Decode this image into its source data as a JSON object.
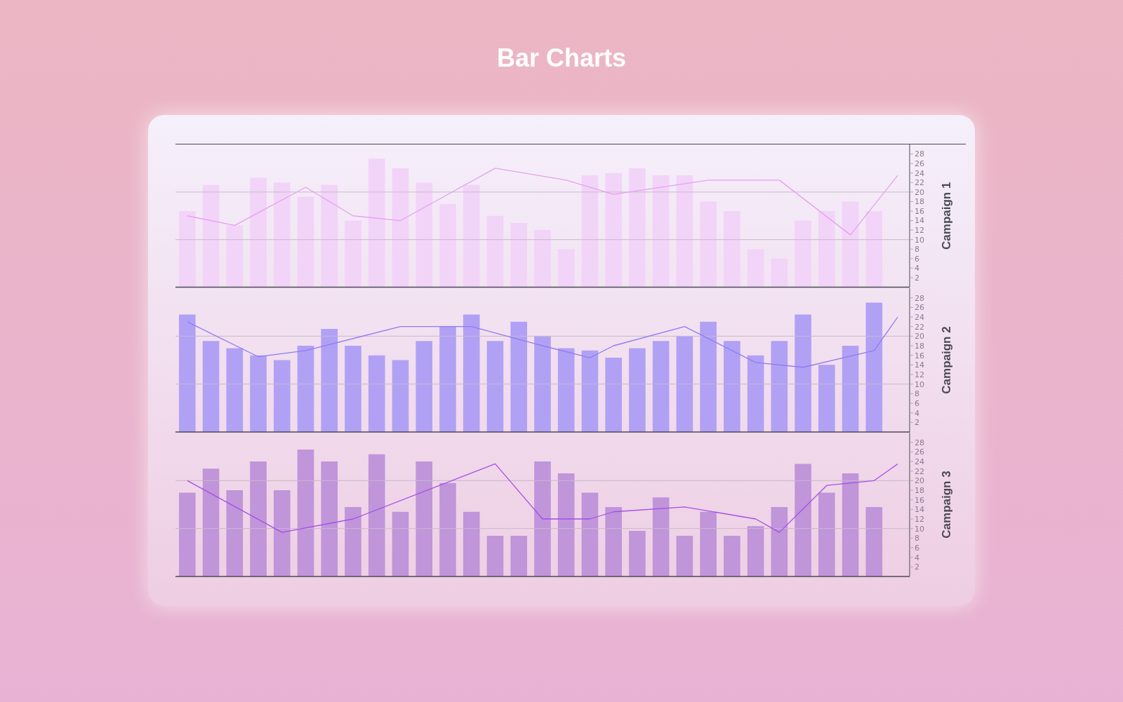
{
  "chart_data": [
    {
      "type": "bar",
      "title": "Bar Charts",
      "ylabel": "Campaign 1",
      "categories": [
        null,
        null,
        null,
        null,
        null,
        null,
        null,
        null,
        null,
        null,
        null,
        null,
        null,
        null,
        null,
        null,
        null,
        null,
        null,
        null,
        null,
        null,
        null,
        null,
        null,
        null,
        null,
        null,
        null,
        null,
        null
      ],
      "ylim": [
        0,
        30
      ],
      "yticks": [
        2,
        4,
        6,
        8,
        10,
        12,
        14,
        16,
        18,
        20,
        22,
        24,
        26,
        28
      ],
      "tick_labels": "y",
      "marker": "none",
      "ref_lines": [
        {
          "axis": "y",
          "value": 10,
          "color": "#c8b8cc"
        },
        {
          "axis": "y",
          "value": 20,
          "color": "#c8b8cc"
        }
      ],
      "series": [
        {
          "color": "#f2d4f8",
          "values": [
            16,
            21.5,
            13,
            23,
            22,
            19,
            21.5,
            14,
            27,
            25,
            22,
            17.5,
            21.5,
            15,
            13.5,
            12,
            8,
            23.5,
            24,
            25,
            23.5,
            23.5,
            18,
            16,
            8,
            6,
            14,
            16,
            18,
            16,
            null
          ]
        },
        {
          "type": "line",
          "color": "#e6a0f0",
          "values": [
            15,
            null,
            13,
            null,
            null,
            21,
            null,
            15,
            null,
            14,
            null,
            null,
            null,
            25,
            null,
            null,
            22.5,
            null,
            19.5,
            null,
            null,
            null,
            22.5,
            null,
            null,
            22.5,
            null,
            null,
            11,
            null,
            23.5
          ]
        }
      ]
    },
    {
      "type": "bar",
      "ylabel": "Campaign 2",
      "categories": [
        null,
        null,
        null,
        null,
        null,
        null,
        null,
        null,
        null,
        null,
        null,
        null,
        null,
        null,
        null,
        null,
        null,
        null,
        null,
        null,
        null,
        null,
        null,
        null,
        null,
        null,
        null,
        null,
        null,
        null,
        null
      ],
      "ylim": [
        0,
        30
      ],
      "yticks": [
        2,
        4,
        6,
        8,
        10,
        12,
        14,
        16,
        18,
        20,
        22,
        24,
        26,
        28
      ],
      "tick_labels": "y",
      "marker": "none",
      "ref_lines": [
        {
          "axis": "y",
          "value": 10,
          "color": "#c8b8cc"
        },
        {
          "axis": "y",
          "value": 20,
          "color": "#c8b8cc"
        }
      ],
      "series": [
        {
          "color": "#b1a1f5",
          "values": [
            24.5,
            19,
            17.5,
            16,
            15,
            18,
            21.5,
            18,
            16,
            15,
            19,
            22,
            24.5,
            19,
            23,
            20,
            17.5,
            17,
            15.5,
            17.5,
            19,
            20,
            23,
            19,
            16,
            19,
            24.5,
            14,
            18,
            27,
            null
          ]
        },
        {
          "type": "line",
          "color": "#8f7cf0",
          "values": [
            23,
            null,
            null,
            15.7,
            null,
            17,
            null,
            null,
            null,
            22,
            null,
            null,
            22,
            null,
            null,
            18,
            null,
            15.5,
            18,
            null,
            null,
            22,
            null,
            null,
            14.5,
            null,
            13.5,
            null,
            null,
            17,
            24
          ]
        }
      ]
    },
    {
      "type": "bar",
      "ylabel": "Campaign 3",
      "categories": [
        null,
        null,
        null,
        null,
        null,
        null,
        null,
        null,
        null,
        null,
        null,
        null,
        null,
        null,
        null,
        null,
        null,
        null,
        null,
        null,
        null,
        null,
        null,
        null,
        null,
        null,
        null,
        null,
        null,
        null,
        null
      ],
      "ylim": [
        0,
        30
      ],
      "yticks": [
        2,
        4,
        6,
        8,
        10,
        12,
        14,
        16,
        18,
        20,
        22,
        24,
        26,
        28
      ],
      "tick_labels": "y",
      "marker": "none",
      "ref_lines": [
        {
          "axis": "y",
          "value": 10,
          "color": "#c8b8cc"
        },
        {
          "axis": "y",
          "value": 20,
          "color": "#c8b8cc"
        }
      ],
      "series": [
        {
          "color": "#c095da",
          "values": [
            17.5,
            22.5,
            18,
            24,
            18,
            26.5,
            24,
            14.5,
            25.5,
            13.5,
            24,
            19.5,
            13.5,
            8.5,
            8.5,
            24,
            21.5,
            17.5,
            14.5,
            9.5,
            16.5,
            8.5,
            13.5,
            8.5,
            10.5,
            14.5,
            23.5,
            17.5,
            21.5,
            14.5,
            null
          ]
        },
        {
          "type": "line",
          "color": "#a64ee8",
          "values": [
            20,
            null,
            null,
            null,
            9.2,
            null,
            null,
            12,
            null,
            null,
            null,
            null,
            null,
            23.5,
            null,
            12,
            null,
            12,
            13.5,
            null,
            null,
            14.5,
            null,
            null,
            12,
            9.2,
            null,
            19,
            null,
            20,
            23.5
          ]
        }
      ]
    }
  ]
}
